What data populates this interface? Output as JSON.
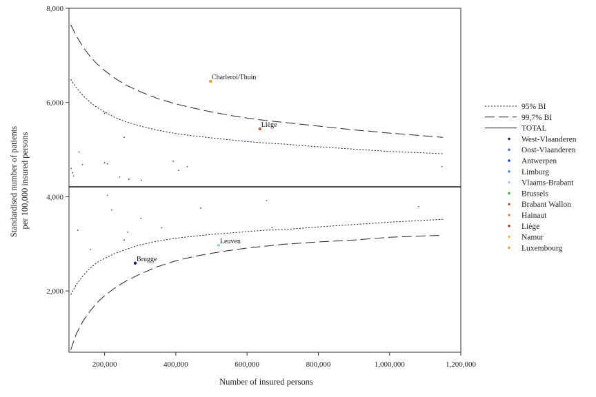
{
  "chart_data": {
    "type": "scatter",
    "title": "",
    "xlabel": "Number of insured persons",
    "ylabel_lines": [
      "Standardised number of patients",
      "per 100,000 insured persons"
    ],
    "xlim": [
      100000,
      1200000
    ],
    "ylim": [
      700,
      8000
    ],
    "x_ticks": [
      200000,
      400000,
      600000,
      800000,
      1000000,
      1200000
    ],
    "x_tick_labels": [
      "200,000",
      "400,000",
      "600,000",
      "800,000",
      "1,000,000",
      "1,200,000"
    ],
    "y_ticks": [
      2000,
      4000,
      6000,
      8000
    ],
    "y_tick_labels": [
      "2,000",
      "4,000",
      "6,000",
      "8,000"
    ],
    "grid": false,
    "legend_position": "right",
    "total": 4210,
    "ci95": {
      "x": [
        105000,
        120000,
        140000,
        160000,
        180000,
        200000,
        230000,
        260000,
        300000,
        350000,
        400000,
        450000,
        500000,
        550000,
        600000,
        650000,
        700000,
        800000,
        900000,
        1000000,
        1100000,
        1150000
      ],
      "upper": [
        6490,
        6320,
        6140,
        6000,
        5890,
        5800,
        5680,
        5590,
        5500,
        5410,
        5340,
        5290,
        5250,
        5210,
        5170,
        5140,
        5120,
        5060,
        5010,
        4960,
        4930,
        4910
      ],
      "lower": [
        1920,
        2130,
        2330,
        2490,
        2610,
        2690,
        2800,
        2880,
        2980,
        3060,
        3120,
        3160,
        3200,
        3230,
        3260,
        3290,
        3300,
        3360,
        3410,
        3460,
        3500,
        3520
      ]
    },
    "ci997": {
      "x": [
        105000,
        120000,
        140000,
        160000,
        180000,
        200000,
        230000,
        260000,
        300000,
        350000,
        400000,
        450000,
        500000,
        550000,
        600000,
        650000,
        700000,
        800000,
        900000,
        1000000,
        1100000,
        1150000
      ],
      "upper": [
        7650,
        7420,
        7170,
        6970,
        6810,
        6680,
        6510,
        6370,
        6230,
        6080,
        5970,
        5880,
        5800,
        5730,
        5670,
        5620,
        5580,
        5500,
        5420,
        5350,
        5290,
        5260
      ],
      "lower": [
        750,
        1080,
        1370,
        1580,
        1760,
        1900,
        2070,
        2210,
        2360,
        2520,
        2640,
        2730,
        2800,
        2860,
        2910,
        2950,
        2990,
        3040,
        3080,
        3140,
        3170,
        3180
      ]
    },
    "points": [
      {
        "x": 106000,
        "y": 4600,
        "color": "#444444",
        "label": ""
      },
      {
        "x": 110000,
        "y": 4510,
        "color": "#444444",
        "label": ""
      },
      {
        "x": 113000,
        "y": 4440,
        "color": "#444444",
        "label": ""
      },
      {
        "x": 114000,
        "y": 4210,
        "color": "#444444",
        "label": ""
      },
      {
        "x": 128000,
        "y": 4950,
        "color": "#444444",
        "label": ""
      },
      {
        "x": 138000,
        "y": 4680,
        "color": "#444444",
        "label": ""
      },
      {
        "x": 125000,
        "y": 3290,
        "color": "#444444",
        "label": ""
      },
      {
        "x": 160000,
        "y": 2880,
        "color": "#444444",
        "label": ""
      },
      {
        "x": 200000,
        "y": 5770,
        "color": "#444444",
        "label": ""
      },
      {
        "x": 200000,
        "y": 4720,
        "color": "#444444",
        "label": ""
      },
      {
        "x": 208000,
        "y": 4700,
        "color": "#444444",
        "label": ""
      },
      {
        "x": 208000,
        "y": 4030,
        "color": "#444444",
        "label": ""
      },
      {
        "x": 220000,
        "y": 3720,
        "color": "#444444",
        "label": ""
      },
      {
        "x": 242000,
        "y": 4420,
        "color": "#444444",
        "label": ""
      },
      {
        "x": 255000,
        "y": 5260,
        "color": "#444444",
        "label": ""
      },
      {
        "x": 255000,
        "y": 3080,
        "color": "#444444",
        "label": ""
      },
      {
        "x": 265000,
        "y": 3250,
        "color": "#444444",
        "label": ""
      },
      {
        "x": 268000,
        "y": 4370,
        "color": "#444444",
        "label": ""
      },
      {
        "x": 303000,
        "y": 4350,
        "color": "#444444",
        "label": ""
      },
      {
        "x": 302000,
        "y": 3540,
        "color": "#444444",
        "label": ""
      },
      {
        "x": 360000,
        "y": 3340,
        "color": "#444444",
        "label": ""
      },
      {
        "x": 393000,
        "y": 4750,
        "color": "#444444",
        "label": ""
      },
      {
        "x": 408000,
        "y": 4560,
        "color": "#444444",
        "label": ""
      },
      {
        "x": 432000,
        "y": 4640,
        "color": "#444444",
        "label": ""
      },
      {
        "x": 470000,
        "y": 3760,
        "color": "#444444",
        "label": ""
      },
      {
        "x": 655000,
        "y": 3920,
        "color": "#444444",
        "label": ""
      },
      {
        "x": 670000,
        "y": 3350,
        "color": "#444444",
        "label": ""
      },
      {
        "x": 1082000,
        "y": 3790,
        "color": "#444444",
        "label": ""
      },
      {
        "x": 1147000,
        "y": 4640,
        "color": "#444444",
        "label": ""
      },
      {
        "x": 497000,
        "y": 6450,
        "color": "#f0a030",
        "label": "Charleroi/Thuin"
      },
      {
        "x": 636000,
        "y": 5440,
        "color": "#c05a30",
        "label": "Liège"
      },
      {
        "x": 520000,
        "y": 2970,
        "color": "#9ccaf0",
        "label": "Leuven"
      },
      {
        "x": 286000,
        "y": 2590,
        "color": "#1a1a70",
        "label": "Brugge"
      }
    ],
    "legend": [
      {
        "label": "95% BI",
        "kind": "dotted",
        "color": "#222222"
      },
      {
        "label": "99,7% BI",
        "kind": "dashed",
        "color": "#222222"
      },
      {
        "label": "TOTAL",
        "kind": "solid",
        "color": "#222222"
      },
      {
        "label": "West-Vlaanderen",
        "kind": "dot",
        "color": "#1a1a70"
      },
      {
        "label": "Oost-Vlaanderen",
        "kind": "dot",
        "color": "#4a70d8"
      },
      {
        "label": "Antwerpen",
        "kind": "dot",
        "color": "#1a3ad0"
      },
      {
        "label": "Limburg",
        "kind": "dot",
        "color": "#3a8fe8"
      },
      {
        "label": "Vlaams-Brabant",
        "kind": "dot",
        "color": "#9ccaf0"
      },
      {
        "label": "Brussels",
        "kind": "dot",
        "color": "#40b040"
      },
      {
        "label": "Brabant Wallon",
        "kind": "dot",
        "color": "#c85a32"
      },
      {
        "label": "Hainaut",
        "kind": "dot",
        "color": "#f08a28"
      },
      {
        "label": "Liège",
        "kind": "dot",
        "color": "#a0402a"
      },
      {
        "label": "Namur",
        "kind": "dot",
        "color": "#f0c020"
      },
      {
        "label": "Luxembourg",
        "kind": "dot",
        "color": "#f0a020"
      }
    ]
  }
}
